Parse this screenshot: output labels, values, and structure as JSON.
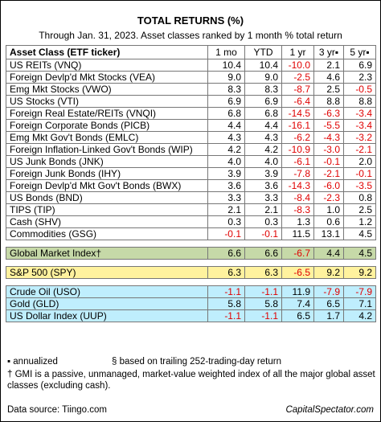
{
  "header": {
    "title": "TOTAL RETURNS (%)",
    "subtitle": "Through Jan. 31, 2023. Asset classes ranked by 1 month % total return"
  },
  "table": {
    "columns": {
      "name": "Asset Class (ETF ticker)",
      "m1": "1 mo",
      "ytd": "YTD",
      "y1": "1 yr",
      "y3": "3 yr▪",
      "y5": "5 yr▪"
    },
    "assets": [
      {
        "name": "US REITs (VNQ)",
        "m1": "10.4",
        "ytd": "10.4",
        "y1": "-10.0",
        "y3": "2.1",
        "y5": "6.9"
      },
      {
        "name": "Foreign Devlp'd Mkt Stocks (VEA)",
        "m1": "9.0",
        "ytd": "9.0",
        "y1": "-2.5",
        "y3": "4.6",
        "y5": "2.3"
      },
      {
        "name": "Emg Mkt Stocks (VWO)",
        "m1": "8.3",
        "ytd": "8.3",
        "y1": "-8.7",
        "y3": "2.5",
        "y5": "-0.5"
      },
      {
        "name": "US Stocks (VTI)",
        "m1": "6.9",
        "ytd": "6.9",
        "y1": "-6.4",
        "y3": "8.8",
        "y5": "8.8"
      },
      {
        "name": "Foreign Real Estate/REITs (VNQI)",
        "m1": "6.8",
        "ytd": "6.8",
        "y1": "-14.5",
        "y3": "-6.3",
        "y5": "-3.4"
      },
      {
        "name": "Foreign Corporate Bonds (PICB)",
        "m1": "4.4",
        "ytd": "4.4",
        "y1": "-16.1",
        "y3": "-5.5",
        "y5": "-3.4"
      },
      {
        "name": "Emg Mkt Gov't Bonds (EMLC)",
        "m1": "4.3",
        "ytd": "4.3",
        "y1": "-6.2",
        "y3": "-4.3",
        "y5": "-3.2"
      },
      {
        "name": "Foreign Inflation-Linked Gov't Bonds (WIP)",
        "m1": "4.2",
        "ytd": "4.2",
        "y1": "-10.9",
        "y3": "-3.0",
        "y5": "-2.1"
      },
      {
        "name": "US Junk Bonds (JNK)",
        "m1": "4.0",
        "ytd": "4.0",
        "y1": "-6.1",
        "y3": "-0.1",
        "y5": "2.0"
      },
      {
        "name": "Foreign Junk Bonds (IHY)",
        "m1": "3.9",
        "ytd": "3.9",
        "y1": "-7.8",
        "y3": "-2.1",
        "y5": "-0.1"
      },
      {
        "name": "Foreign Devlp'd Mkt Gov't Bonds (BWX)",
        "m1": "3.6",
        "ytd": "3.6",
        "y1": "-14.3",
        "y3": "-6.0",
        "y5": "-3.5"
      },
      {
        "name": "US Bonds (BND)",
        "m1": "3.3",
        "ytd": "3.3",
        "y1": "-8.4",
        "y3": "-2.3",
        "y5": "0.8"
      },
      {
        "name": "TIPS (TIP)",
        "m1": "2.1",
        "ytd": "2.1",
        "y1": "-8.3",
        "y3": "1.0",
        "y5": "2.5"
      },
      {
        "name": "Cash (SHV)",
        "m1": "0.3",
        "ytd": "0.3",
        "y1": "1.3",
        "y3": "0.6",
        "y5": "1.2"
      },
      {
        "name": "Commodities (GSG)",
        "m1": "-0.1",
        "ytd": "-0.1",
        "y1": "11.5",
        "y3": "13.1",
        "y5": "4.5"
      }
    ],
    "gmi": {
      "name": "Global Market Index†",
      "m1": "6.6",
      "ytd": "6.6",
      "y1": "-6.7",
      "y3": "4.4",
      "y5": "4.5"
    },
    "spy": {
      "name": "S&P 500 (SPY)",
      "m1": "6.3",
      "ytd": "6.3",
      "y1": "-6.5",
      "y3": "9.2",
      "y5": "9.2"
    },
    "commodities": [
      {
        "name": "Crude Oil (USO)",
        "m1": "-1.1",
        "ytd": "-1.1",
        "y1": "11.9",
        "y3": "-7.9",
        "y5": "-7.9"
      },
      {
        "name": "Gold (GLD)",
        "m1": "5.8",
        "ytd": "5.8",
        "y1": "7.4",
        "y3": "6.5",
        "y5": "7.1"
      },
      {
        "name": "US Dollar Index (UUP)",
        "m1": "-1.1",
        "ytd": "-1.1",
        "y1": "6.5",
        "y3": "1.7",
        "y5": "4.2"
      }
    ]
  },
  "notes": {
    "annualized": "▪ annualized",
    "trailing": "§ based on trailing 252-trading-day return",
    "gmi": "† GMI is a passive, unmanaged, market-value weighted index of all the major global asset classes (excluding cash)."
  },
  "footer": {
    "source": "Data source: Tiingo.com",
    "site": "CapitalSpectator.com"
  },
  "colors": {
    "negative": "#e00000",
    "gmi_row": "#c6d9a8",
    "spy_row": "#fff29e",
    "commodity_rows": "#bfeefd",
    "header_shade": "#d9d9d9"
  }
}
